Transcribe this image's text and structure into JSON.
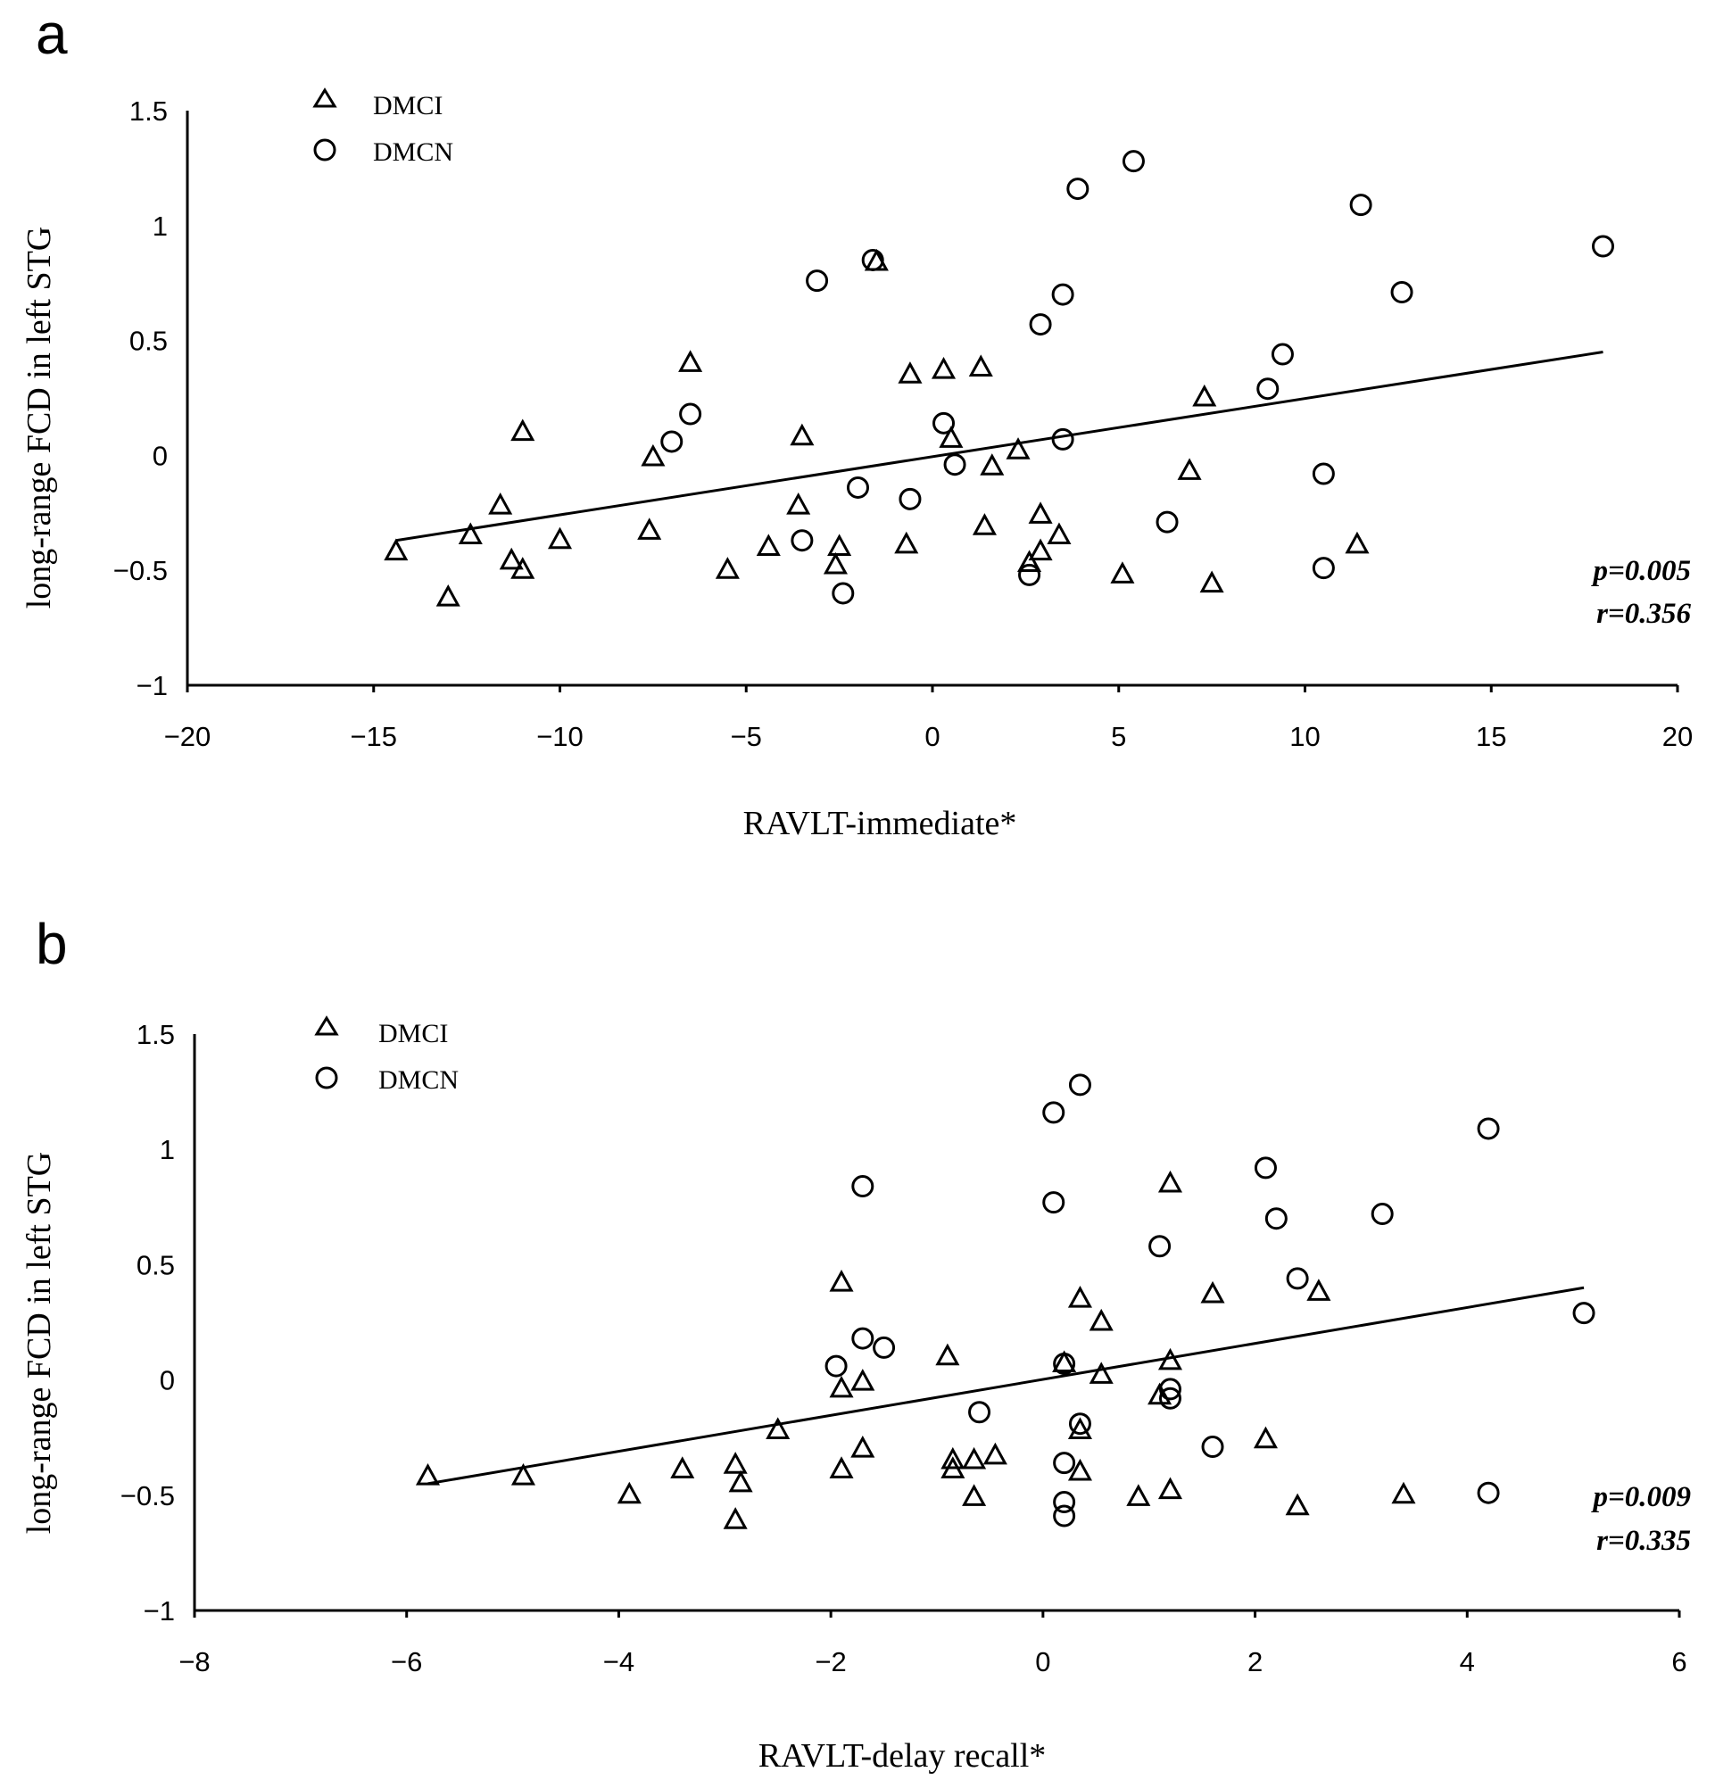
{
  "chart_data": [
    {
      "type": "scatter",
      "panel": "a",
      "xlabel": "RAVLT-immediate*",
      "ylabel": "long-range FCD in left STG",
      "xlim": [
        -20,
        20
      ],
      "ylim": [
        -1,
        1.5
      ],
      "xticks": [
        -20,
        -15,
        -10,
        -5,
        0,
        5,
        10,
        15,
        20
      ],
      "yticks": [
        -1,
        -0.5,
        0,
        0.5,
        1,
        1.5
      ],
      "xtick_labels": [
        "−20",
        "−15",
        "−10",
        "−5",
        "0",
        "5",
        "10",
        "15",
        "20"
      ],
      "ytick_labels": [
        "−1",
        "−0.5",
        "0",
        "0.5",
        "1",
        "1.5"
      ],
      "legend": [
        {
          "name": "DMCI",
          "marker": "triangle"
        },
        {
          "name": "DMCN",
          "marker": "circle"
        }
      ],
      "stats": {
        "p": "p=0.005",
        "r": "r=0.356"
      },
      "trendline": {
        "x": [
          -14.4,
          18
        ],
        "y": [
          -0.37,
          0.45
        ]
      },
      "series": [
        {
          "name": "DMCI",
          "marker": "triangle",
          "points": [
            [
              -14.4,
              -0.42
            ],
            [
              -13,
              -0.62
            ],
            [
              -12.4,
              -0.35
            ],
            [
              -11.6,
              -0.22
            ],
            [
              -11.3,
              -0.46
            ],
            [
              -11,
              -0.5
            ],
            [
              -11,
              0.1
            ],
            [
              -10,
              -0.37
            ],
            [
              -7.6,
              -0.33
            ],
            [
              -7.5,
              -0.01
            ],
            [
              -6.5,
              0.4
            ],
            [
              -5.5,
              -0.5
            ],
            [
              -4.4,
              -0.4
            ],
            [
              -3.6,
              -0.22
            ],
            [
              -3.5,
              0.08
            ],
            [
              -2.6,
              -0.48
            ],
            [
              -2.5,
              -0.4
            ],
            [
              -1.5,
              0.84
            ],
            [
              -0.7,
              -0.39
            ],
            [
              -0.6,
              0.35
            ],
            [
              0.3,
              0.37
            ],
            [
              0.5,
              0.07
            ],
            [
              1.3,
              0.38
            ],
            [
              1.4,
              -0.31
            ],
            [
              1.6,
              -0.05
            ],
            [
              2.3,
              0.02
            ],
            [
              2.6,
              -0.47
            ],
            [
              2.9,
              -0.26
            ],
            [
              2.9,
              -0.42
            ],
            [
              3.4,
              -0.35
            ],
            [
              5.1,
              -0.52
            ],
            [
              6.9,
              -0.07
            ],
            [
              7.3,
              0.25
            ],
            [
              7.5,
              -0.56
            ],
            [
              11.4,
              -0.39
            ]
          ]
        },
        {
          "name": "DMCN",
          "marker": "circle",
          "points": [
            [
              -7,
              0.06
            ],
            [
              -6.5,
              0.18
            ],
            [
              -3.5,
              -0.37
            ],
            [
              -3.1,
              0.76
            ],
            [
              -2.4,
              -0.6
            ],
            [
              -2,
              -0.14
            ],
            [
              -1.6,
              0.85
            ],
            [
              -0.6,
              -0.19
            ],
            [
              0.3,
              0.14
            ],
            [
              0.6,
              -0.04
            ],
            [
              2.6,
              -0.52
            ],
            [
              2.9,
              0.57
            ],
            [
              3.5,
              0.7
            ],
            [
              3.5,
              0.07
            ],
            [
              3.9,
              1.16
            ],
            [
              5.4,
              1.28
            ],
            [
              6.3,
              -0.29
            ],
            [
              9,
              0.29
            ],
            [
              9.4,
              0.44
            ],
            [
              10.5,
              -0.08
            ],
            [
              10.5,
              -0.49
            ],
            [
              11.5,
              1.09
            ],
            [
              12.6,
              0.71
            ],
            [
              18,
              0.91
            ]
          ]
        }
      ]
    },
    {
      "type": "scatter",
      "panel": "b",
      "xlabel": "RAVLT-delay recall*",
      "ylabel": "long-range FCD in left STG",
      "xlim": [
        -8,
        6
      ],
      "ylim": [
        -1,
        1.5
      ],
      "xticks": [
        -8,
        -6,
        -4,
        -2,
        0,
        2,
        4,
        6
      ],
      "yticks": [
        -1,
        -0.5,
        0,
        0.5,
        1,
        1.5
      ],
      "xtick_labels": [
        "−8",
        "−6",
        "−4",
        "−2",
        "0",
        "2",
        "4",
        "6"
      ],
      "ytick_labels": [
        "−1",
        "−0.5",
        "0",
        "0.5",
        "1",
        "1.5"
      ],
      "legend": [
        {
          "name": "DMCI",
          "marker": "triangle"
        },
        {
          "name": "DMCN",
          "marker": "circle"
        }
      ],
      "stats": {
        "p": "p=0.009",
        "r": "r=0.335"
      },
      "trendline": {
        "x": [
          -5.8,
          5.1
        ],
        "y": [
          -0.45,
          0.4
        ]
      },
      "series": [
        {
          "name": "DMCI",
          "marker": "triangle",
          "points": [
            [
              -5.8,
              -0.42
            ],
            [
              -4.9,
              -0.42
            ],
            [
              -3.9,
              -0.5
            ],
            [
              -3.4,
              -0.39
            ],
            [
              -2.9,
              -0.37
            ],
            [
              -2.85,
              -0.45
            ],
            [
              -2.9,
              -0.61
            ],
            [
              -2.5,
              -0.22
            ],
            [
              -1.9,
              0.42
            ],
            [
              -1.9,
              -0.04
            ],
            [
              -1.9,
              -0.39
            ],
            [
              -1.7,
              -0.01
            ],
            [
              -1.7,
              -0.3
            ],
            [
              -0.9,
              0.1
            ],
            [
              -0.85,
              -0.35
            ],
            [
              -0.85,
              -0.39
            ],
            [
              -0.65,
              -0.35
            ],
            [
              -0.65,
              -0.51
            ],
            [
              -0.45,
              -0.33
            ],
            [
              0.2,
              0.07
            ],
            [
              0.35,
              0.35
            ],
            [
              0.35,
              -0.22
            ],
            [
              0.35,
              -0.4
            ],
            [
              0.55,
              0.25
            ],
            [
              0.55,
              0.02
            ],
            [
              0.9,
              -0.51
            ],
            [
              1.1,
              -0.07
            ],
            [
              1.2,
              0.85
            ],
            [
              1.2,
              0.08
            ],
            [
              1.2,
              -0.48
            ],
            [
              1.6,
              0.37
            ],
            [
              2.1,
              -0.26
            ],
            [
              2.4,
              -0.55
            ],
            [
              2.6,
              0.38
            ],
            [
              3.4,
              -0.5
            ]
          ]
        },
        {
          "name": "DMCN",
          "marker": "circle",
          "points": [
            [
              -1.95,
              0.06
            ],
            [
              -1.7,
              0.84
            ],
            [
              -1.7,
              0.18
            ],
            [
              -1.5,
              0.14
            ],
            [
              -0.6,
              -0.14
            ],
            [
              0.1,
              1.16
            ],
            [
              0.1,
              0.77
            ],
            [
              0.2,
              0.07
            ],
            [
              0.2,
              -0.36
            ],
            [
              0.2,
              -0.53
            ],
            [
              0.2,
              -0.59
            ],
            [
              0.35,
              1.28
            ],
            [
              0.35,
              -0.19
            ],
            [
              1.1,
              0.58
            ],
            [
              1.2,
              -0.04
            ],
            [
              1.2,
              -0.08
            ],
            [
              1.6,
              -0.29
            ],
            [
              2.1,
              0.92
            ],
            [
              2.2,
              0.7
            ],
            [
              2.4,
              0.44
            ],
            [
              3.2,
              0.72
            ],
            [
              4.2,
              1.09
            ],
            [
              4.2,
              -0.49
            ],
            [
              5.1,
              0.29
            ]
          ]
        }
      ]
    }
  ]
}
